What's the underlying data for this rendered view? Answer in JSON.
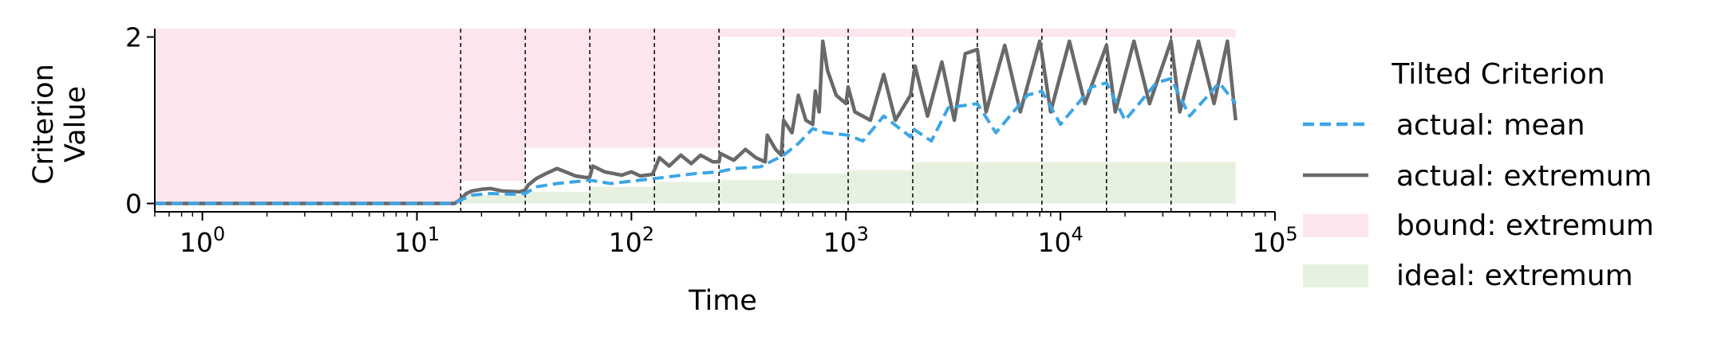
{
  "chart_data": {
    "type": "line",
    "title": "",
    "xlabel": "Time",
    "ylabel": [
      "Criterion",
      "Value"
    ],
    "x_scale": "log",
    "xlim": [
      0.6,
      100000
    ],
    "ylim": [
      -0.1,
      2.1
    ],
    "x_ticks": [
      {
        "value": 1,
        "base": "10",
        "exp": "0"
      },
      {
        "value": 10,
        "base": "10",
        "exp": "1"
      },
      {
        "value": 100,
        "base": "10",
        "exp": "2"
      },
      {
        "value": 1000,
        "base": "10",
        "exp": "3"
      },
      {
        "value": 10000,
        "base": "10",
        "exp": "4"
      },
      {
        "value": 100000,
        "base": "10",
        "exp": "5"
      }
    ],
    "y_ticks": [
      {
        "value": 0,
        "label": "0"
      },
      {
        "value": 2,
        "label": "2"
      }
    ],
    "grid": false,
    "vlines": [
      16,
      32,
      64,
      128,
      256,
      512,
      1024,
      2048,
      4096,
      8192,
      16384,
      32768
    ],
    "legend": {
      "title": "Tilted Criterion",
      "placement": "right-outside",
      "entries": [
        {
          "label": "actual: mean",
          "style": "dashed-line",
          "color": "#3ca5e6"
        },
        {
          "label": "actual: extremum",
          "style": "solid-line",
          "color": "#696969"
        },
        {
          "label": "bound: extremum",
          "style": "patch",
          "color": "#fce6ec"
        },
        {
          "label": "ideal: extremum",
          "style": "patch",
          "color": "#e6f2df"
        }
      ]
    },
    "bound_band": [
      {
        "x0": 0.6,
        "x1": 16,
        "low": 0,
        "high": 2.1
      },
      {
        "x0": 16,
        "x1": 32,
        "low": 0.27,
        "high": 2.1
      },
      {
        "x0": 32,
        "x1": 256,
        "low": 0.67,
        "high": 2.1
      },
      {
        "x0": 256,
        "x1": 65536,
        "low": 2.0,
        "high": 2.1
      }
    ],
    "ideal_band": [
      {
        "x0": 0.6,
        "x1": 16,
        "high": 0
      },
      {
        "x0": 16,
        "x1": 32,
        "high": 0.1
      },
      {
        "x0": 32,
        "x1": 64,
        "high": 0.14
      },
      {
        "x0": 64,
        "x1": 128,
        "high": 0.2
      },
      {
        "x0": 128,
        "x1": 256,
        "high": 0.26
      },
      {
        "x0": 256,
        "x1": 512,
        "high": 0.28
      },
      {
        "x0": 512,
        "x1": 1024,
        "high": 0.36
      },
      {
        "x0": 1024,
        "x1": 2048,
        "high": 0.4
      },
      {
        "x0": 2048,
        "x1": 65536,
        "high": 0.5
      }
    ],
    "series": [
      {
        "name": "actual: extremum",
        "color": "#696969",
        "style": "solid",
        "points": [
          [
            0.6,
            0
          ],
          [
            15,
            0
          ],
          [
            16,
            0.05
          ],
          [
            17,
            0.12
          ],
          [
            18,
            0.15
          ],
          [
            20,
            0.17
          ],
          [
            22,
            0.18
          ],
          [
            25,
            0.15
          ],
          [
            30,
            0.14
          ],
          [
            32,
            0.16
          ],
          [
            33,
            0.22
          ],
          [
            36,
            0.3
          ],
          [
            40,
            0.36
          ],
          [
            45,
            0.42
          ],
          [
            55,
            0.33
          ],
          [
            62,
            0.31
          ],
          [
            64,
            0.32
          ],
          [
            66,
            0.45
          ],
          [
            75,
            0.38
          ],
          [
            90,
            0.34
          ],
          [
            100,
            0.38
          ],
          [
            110,
            0.33
          ],
          [
            125,
            0.35
          ],
          [
            128,
            0.4
          ],
          [
            135,
            0.55
          ],
          [
            150,
            0.45
          ],
          [
            170,
            0.58
          ],
          [
            190,
            0.48
          ],
          [
            210,
            0.58
          ],
          [
            240,
            0.5
          ],
          [
            256,
            0.5
          ],
          [
            260,
            0.6
          ],
          [
            300,
            0.52
          ],
          [
            340,
            0.65
          ],
          [
            380,
            0.55
          ],
          [
            420,
            0.5
          ],
          [
            430,
            0.82
          ],
          [
            470,
            0.65
          ],
          [
            500,
            0.58
          ],
          [
            512,
            1.0
          ],
          [
            560,
            0.85
          ],
          [
            600,
            1.3
          ],
          [
            650,
            1.0
          ],
          [
            700,
            0.95
          ],
          [
            720,
            1.35
          ],
          [
            750,
            1.1
          ],
          [
            780,
            1.95
          ],
          [
            820,
            1.6
          ],
          [
            900,
            1.3
          ],
          [
            1000,
            1.2
          ],
          [
            1024,
            1.4
          ],
          [
            1100,
            1.1
          ],
          [
            1300,
            1.0
          ],
          [
            1500,
            1.55
          ],
          [
            1700,
            1.0
          ],
          [
            2000,
            1.3
          ],
          [
            2100,
            1.65
          ],
          [
            2400,
            1.05
          ],
          [
            2800,
            1.7
          ],
          [
            3200,
            1.0
          ],
          [
            3600,
            1.8
          ],
          [
            4096,
            1.85
          ],
          [
            4500,
            1.1
          ],
          [
            5500,
            1.9
          ],
          [
            6500,
            1.1
          ],
          [
            8000,
            1.95
          ],
          [
            8192,
            1.8
          ],
          [
            9000,
            1.1
          ],
          [
            11000,
            1.95
          ],
          [
            13000,
            1.2
          ],
          [
            16384,
            1.9
          ],
          [
            18000,
            1.1
          ],
          [
            22000,
            1.95
          ],
          [
            26000,
            1.2
          ],
          [
            32768,
            1.95
          ],
          [
            36000,
            1.1
          ],
          [
            44000,
            1.95
          ],
          [
            52000,
            1.2
          ],
          [
            60000,
            1.95
          ],
          [
            65536,
            1.0
          ]
        ]
      },
      {
        "name": "actual: mean",
        "color": "#3ca5e6",
        "style": "dashed",
        "points": [
          [
            0.6,
            0
          ],
          [
            15,
            0
          ],
          [
            16,
            0.04
          ],
          [
            18,
            0.1
          ],
          [
            22,
            0.12
          ],
          [
            28,
            0.11
          ],
          [
            32,
            0.12
          ],
          [
            36,
            0.2
          ],
          [
            45,
            0.24
          ],
          [
            64,
            0.28
          ],
          [
            80,
            0.24
          ],
          [
            128,
            0.3
          ],
          [
            200,
            0.36
          ],
          [
            256,
            0.38
          ],
          [
            300,
            0.42
          ],
          [
            400,
            0.44
          ],
          [
            512,
            0.58
          ],
          [
            600,
            0.72
          ],
          [
            700,
            0.9
          ],
          [
            800,
            0.85
          ],
          [
            1024,
            0.82
          ],
          [
            1200,
            0.75
          ],
          [
            1500,
            1.05
          ],
          [
            2000,
            0.8
          ],
          [
            2048,
            0.9
          ],
          [
            2500,
            0.75
          ],
          [
            3000,
            1.15
          ],
          [
            4096,
            1.2
          ],
          [
            5000,
            0.85
          ],
          [
            7000,
            1.3
          ],
          [
            8192,
            1.35
          ],
          [
            10000,
            0.95
          ],
          [
            14000,
            1.4
          ],
          [
            16384,
            1.45
          ],
          [
            20000,
            1.0
          ],
          [
            28000,
            1.45
          ],
          [
            32768,
            1.5
          ],
          [
            40000,
            1.05
          ],
          [
            55000,
            1.45
          ],
          [
            65536,
            1.2
          ]
        ]
      }
    ]
  }
}
